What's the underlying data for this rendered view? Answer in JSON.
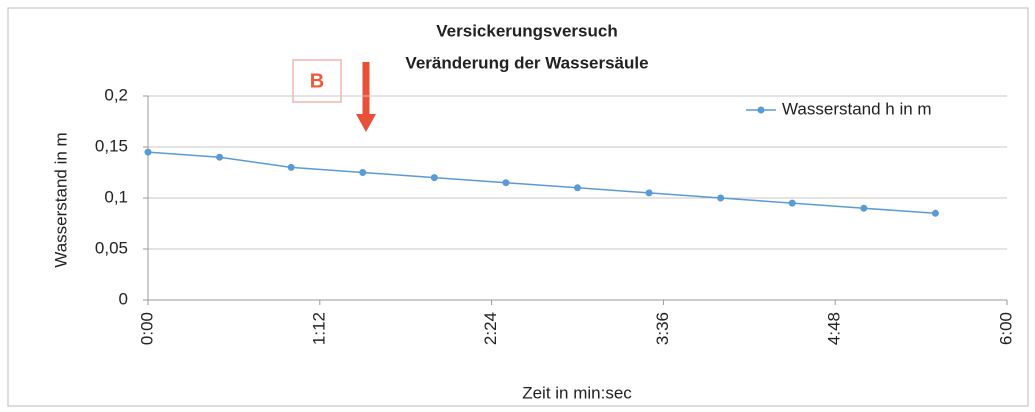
{
  "chart_data": {
    "type": "line",
    "title": "Versickerungsversuch",
    "subtitle": "Veränderung der Wassersäule",
    "x_label": "Zeit in min:sec",
    "y_label": "Wasserstand in m",
    "annotation": "B",
    "x": [
      0,
      30,
      60,
      90,
      120,
      150,
      180,
      210,
      240,
      270,
      300,
      330
    ],
    "series": [
      {
        "name": "Wasserstand h in m",
        "color": "#5b9bd5",
        "values": [
          0.145,
          0.14,
          0.13,
          0.125,
          0.12,
          0.115,
          0.11,
          0.105,
          0.1,
          0.095,
          0.09,
          0.085
        ]
      }
    ],
    "xlim": [
      0,
      360
    ],
    "xticks": [
      {
        "value": 0,
        "label": "0:00"
      },
      {
        "value": 72,
        "label": "1:12"
      },
      {
        "value": 144,
        "label": "2:24"
      },
      {
        "value": 216,
        "label": "3:36"
      },
      {
        "value": 288,
        "label": "4:48"
      },
      {
        "value": 360,
        "label": "6:00"
      }
    ],
    "ylim": [
      0,
      0.2
    ],
    "yticks": [
      0,
      {
        "value": 0.05,
        "label": "0,05"
      },
      {
        "value": 0.1,
        "label": "0,1"
      },
      {
        "value": 0.15,
        "label": "0,15"
      },
      {
        "value": 0.2,
        "label": "0,2"
      }
    ],
    "grid": true,
    "legend": "top-right"
  }
}
